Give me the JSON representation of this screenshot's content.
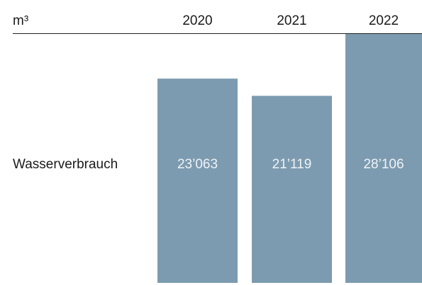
{
  "chart_data": {
    "type": "bar",
    "unit": "m³",
    "categories": [
      "2020",
      "2021",
      "2022"
    ],
    "series": [
      {
        "name": "Wasserverbrauch",
        "color": "#7d9bb0",
        "values": [
          23063,
          21119,
          28106
        ],
        "value_labels": [
          "23’063",
          "21’119",
          "28’106"
        ]
      }
    ]
  }
}
